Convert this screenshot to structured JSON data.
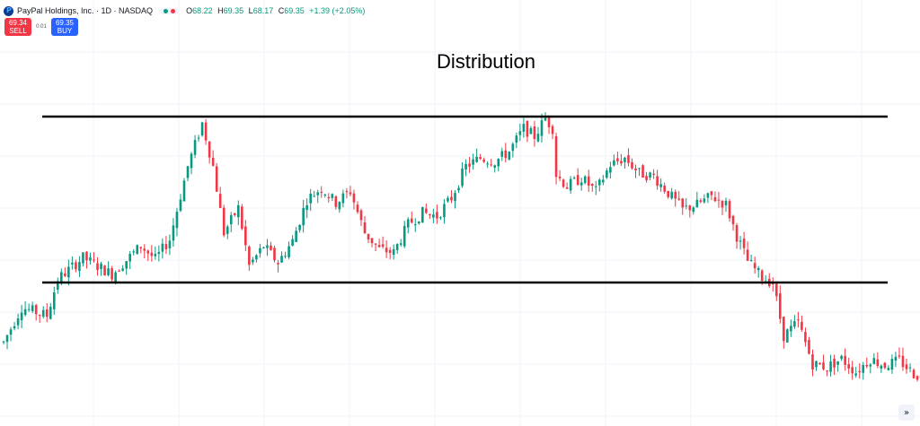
{
  "header": {
    "symbol": "PayPal Holdings, Inc. · 1D · NASDAQ",
    "status_colors": {
      "market": "#089981",
      "data": "#f23645"
    },
    "ohlc": {
      "o_label": "O",
      "o_value": "68.22",
      "h_label": "H",
      "h_value": "69.35",
      "l_label": "L",
      "l_value": "68.17",
      "c_label": "C",
      "c_value": "69.35",
      "change": "+1.39 (+2.05%)"
    }
  },
  "trade": {
    "sell_price": "69.34",
    "sell_label": "SELL",
    "spread": "0.01",
    "buy_price": "69.35",
    "buy_label": "BUY"
  },
  "annotation": {
    "title": "Distribution"
  },
  "colors": {
    "up": "#089981",
    "down": "#f23645",
    "line": "#000000",
    "grid": "#f0f3fa"
  },
  "chart_data": {
    "type": "candlestick",
    "resistance": 81,
    "support": 71,
    "waypoints": [
      [
        0,
        67.4
      ],
      [
        5,
        69.5
      ],
      [
        12,
        69.0
      ],
      [
        15,
        71.2
      ],
      [
        22,
        72.5
      ],
      [
        26,
        72.0
      ],
      [
        30,
        71.5
      ],
      [
        38,
        73.2
      ],
      [
        42,
        72.4
      ],
      [
        46,
        73.6
      ],
      [
        51,
        78.0
      ],
      [
        55,
        80.6
      ],
      [
        58,
        78.0
      ],
      [
        61,
        74.0
      ],
      [
        65,
        75.5
      ],
      [
        68,
        72.0
      ],
      [
        72,
        73.2
      ],
      [
        76,
        72.2
      ],
      [
        80,
        73.5
      ],
      [
        84,
        76.0
      ],
      [
        88,
        76.7
      ],
      [
        92,
        75.8
      ],
      [
        96,
        76.5
      ],
      [
        100,
        74.0
      ],
      [
        104,
        73.0
      ],
      [
        108,
        72.8
      ],
      [
        112,
        74.5
      ],
      [
        116,
        75.2
      ],
      [
        120,
        75.0
      ],
      [
        124,
        76.1
      ],
      [
        128,
        78.0
      ],
      [
        132,
        78.5
      ],
      [
        136,
        78.3
      ],
      [
        140,
        78.9
      ],
      [
        144,
        80.3
      ],
      [
        147,
        79.8
      ],
      [
        150,
        80.9
      ],
      [
        152,
        80.3
      ],
      [
        153,
        77.5
      ],
      [
        156,
        76.8
      ],
      [
        160,
        77.3
      ],
      [
        164,
        76.5
      ],
      [
        168,
        78.1
      ],
      [
        172,
        78.5
      ],
      [
        176,
        77.6
      ],
      [
        180,
        77.4
      ],
      [
        184,
        76.4
      ],
      [
        188,
        75.4
      ],
      [
        192,
        75.7
      ],
      [
        196,
        76.2
      ],
      [
        200,
        75.7
      ],
      [
        203,
        73.8
      ],
      [
        206,
        72.3
      ],
      [
        210,
        71.3
      ],
      [
        213,
        71.0
      ],
      [
        216,
        67.8
      ],
      [
        220,
        68.6
      ],
      [
        224,
        66.1
      ],
      [
        228,
        65.9
      ],
      [
        232,
        66.4
      ],
      [
        236,
        65.6
      ],
      [
        240,
        66.4
      ],
      [
        244,
        66.0
      ],
      [
        248,
        66.3
      ],
      [
        252,
        65.5
      ],
      [
        255,
        65.2
      ]
    ]
  }
}
